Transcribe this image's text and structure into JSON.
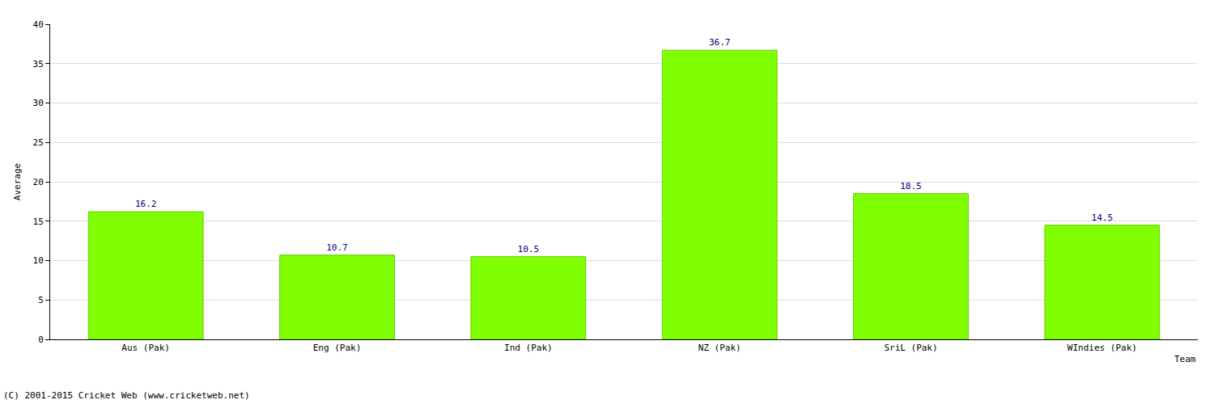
{
  "chart_data": {
    "type": "bar",
    "x_label": "Team",
    "y_label": "Average",
    "categories": [
      "Aus (Pak)",
      "Eng (Pak)",
      "Ind (Pak)",
      "NZ (Pak)",
      "SriL (Pak)",
      "WIndies (Pak)"
    ],
    "values": [
      16.2,
      10.7,
      10.5,
      36.7,
      18.5,
      14.5
    ],
    "color": "#7fff00",
    "ylim": [
      0,
      40
    ],
    "yticks": [
      0,
      5,
      10,
      15,
      20,
      25,
      30,
      35,
      40
    ],
    "grid": true,
    "data_labels": true,
    "annotations": [
      "(C) 2001-2015 Cricket Web (www.cricketweb.net)"
    ]
  }
}
